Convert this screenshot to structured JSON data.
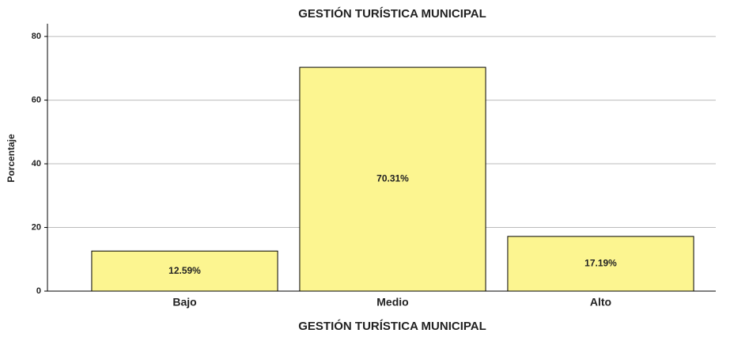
{
  "chart_data": {
    "type": "bar",
    "title": "GESTIÓN TURÍSTICA MUNICIPAL",
    "x_label": "GESTIÓN TURÍSTICA MUNICIPAL",
    "y_label": "Porcentaje",
    "categories": [
      "Bajo",
      "Medio",
      "Alto"
    ],
    "values": [
      12.59,
      70.31,
      17.19
    ],
    "value_labels": [
      "12.59%",
      "70.31%",
      "17.19%"
    ],
    "color": "#fcf590",
    "ylim": [
      0,
      84
    ],
    "yticks": [
      0,
      20,
      40,
      60,
      80
    ],
    "grid": true
  }
}
